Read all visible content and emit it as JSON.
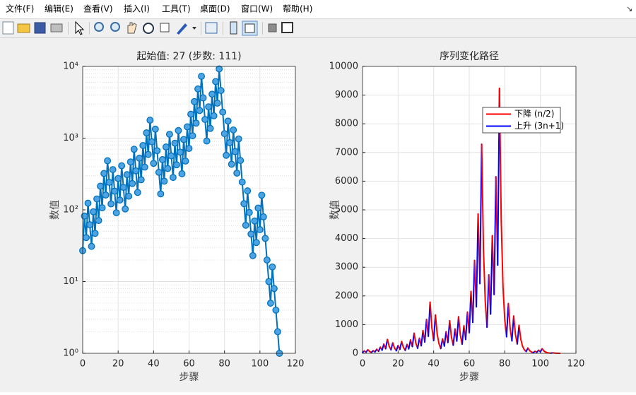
{
  "menu": [
    "文件(F)",
    "编辑(E)",
    "查看(V)",
    "插入(I)",
    "工具(T)",
    "桌面(D)",
    "窗口(W)",
    "帮助(H)"
  ],
  "chart_data": [
    {
      "type": "line",
      "title": "起始值: 27 (步数: 111)",
      "xlabel": "步骤",
      "ylabel": "数值",
      "log_y": true,
      "grid": true,
      "color": "#0072bd",
      "marker_color": "#4ea3e3",
      "xlim": [
        0,
        120
      ],
      "xticks": [
        0,
        20,
        40,
        60,
        80,
        100,
        120
      ],
      "ylim": [
        1,
        10000
      ],
      "yticks": [
        {
          "value": 1,
          "label": "10⁰"
        },
        {
          "value": 10,
          "label": "10¹"
        },
        {
          "value": 100,
          "label": "10²"
        },
        {
          "value": 1000,
          "label": "10³"
        },
        {
          "value": 10000,
          "label": "10⁴"
        }
      ],
      "yminorticks": [
        2,
        3,
        4,
        5,
        6,
        7,
        8,
        9,
        20,
        30,
        40,
        50,
        60,
        70,
        80,
        90,
        200,
        300,
        400,
        500,
        600,
        700,
        800,
        900,
        2000,
        3000,
        4000,
        5000,
        6000,
        7000,
        8000,
        9000
      ],
      "x": [
        0,
        1,
        2,
        3,
        4,
        5,
        6,
        7,
        8,
        9,
        10,
        11,
        12,
        13,
        14,
        15,
        16,
        17,
        18,
        19,
        20,
        21,
        22,
        23,
        24,
        25,
        26,
        27,
        28,
        29,
        30,
        31,
        32,
        33,
        34,
        35,
        36,
        37,
        38,
        39,
        40,
        41,
        42,
        43,
        44,
        45,
        46,
        47,
        48,
        49,
        50,
        51,
        52,
        53,
        54,
        55,
        56,
        57,
        58,
        59,
        60,
        61,
        62,
        63,
        64,
        65,
        66,
        67,
        68,
        69,
        70,
        71,
        72,
        73,
        74,
        75,
        76,
        77,
        78,
        79,
        80,
        81,
        82,
        83,
        84,
        85,
        86,
        87,
        88,
        89,
        90,
        91,
        92,
        93,
        94,
        95,
        96,
        97,
        98,
        99,
        100,
        101,
        102,
        103,
        104,
        105,
        106,
        107,
        108,
        109,
        110,
        111
      ],
      "values": [
        27,
        82,
        41,
        124,
        62,
        31,
        94,
        47,
        142,
        71,
        214,
        107,
        322,
        161,
        484,
        242,
        121,
        364,
        182,
        91,
        274,
        137,
        412,
        206,
        103,
        310,
        155,
        466,
        233,
        700,
        350,
        175,
        526,
        263,
        790,
        395,
        1186,
        593,
        1780,
        890,
        445,
        1336,
        668,
        334,
        167,
        502,
        251,
        754,
        377,
        1132,
        566,
        283,
        850,
        425,
        1276,
        638,
        319,
        958,
        479,
        1438,
        719,
        2158,
        1079,
        3238,
        1619,
        4858,
        2429,
        7288,
        3644,
        1822,
        911,
        2734,
        1367,
        4102,
        2051,
        6154,
        3077,
        9232,
        4616,
        2308,
        1154,
        577,
        1732,
        866,
        433,
        1300,
        650,
        325,
        976,
        488,
        244,
        122,
        61,
        184,
        92,
        46,
        23,
        70,
        35,
        106,
        53,
        160,
        80,
        40,
        20,
        10,
        5,
        16,
        8,
        4,
        2,
        1
      ]
    },
    {
      "type": "direction-line",
      "title": "序列变化路径",
      "xlabel": "步骤",
      "ylabel": "数值",
      "grid": true,
      "legend": "northeast",
      "legend_entries": [
        {
          "name": "下降 (n/2)",
          "color": "#ff0000"
        },
        {
          "name": "上升 (3n+1)",
          "color": "#0000ff"
        }
      ],
      "xlim": [
        0,
        120
      ],
      "xticks": [
        0,
        20,
        40,
        60,
        80,
        100,
        120
      ],
      "ylim": [
        0,
        10000
      ],
      "yticks": [
        0,
        1000,
        2000,
        3000,
        4000,
        5000,
        6000,
        7000,
        8000,
        9000,
        10000
      ],
      "x": [
        0,
        1,
        2,
        3,
        4,
        5,
        6,
        7,
        8,
        9,
        10,
        11,
        12,
        13,
        14,
        15,
        16,
        17,
        18,
        19,
        20,
        21,
        22,
        23,
        24,
        25,
        26,
        27,
        28,
        29,
        30,
        31,
        32,
        33,
        34,
        35,
        36,
        37,
        38,
        39,
        40,
        41,
        42,
        43,
        44,
        45,
        46,
        47,
        48,
        49,
        50,
        51,
        52,
        53,
        54,
        55,
        56,
        57,
        58,
        59,
        60,
        61,
        62,
        63,
        64,
        65,
        66,
        67,
        68,
        69,
        70,
        71,
        72,
        73,
        74,
        75,
        76,
        77,
        78,
        79,
        80,
        81,
        82,
        83,
        84,
        85,
        86,
        87,
        88,
        89,
        90,
        91,
        92,
        93,
        94,
        95,
        96,
        97,
        98,
        99,
        100,
        101,
        102,
        103,
        104,
        105,
        106,
        107,
        108,
        109,
        110,
        111
      ],
      "values": [
        27,
        82,
        41,
        124,
        62,
        31,
        94,
        47,
        142,
        71,
        214,
        107,
        322,
        161,
        484,
        242,
        121,
        364,
        182,
        91,
        274,
        137,
        412,
        206,
        103,
        310,
        155,
        466,
        233,
        700,
        350,
        175,
        526,
        263,
        790,
        395,
        1186,
        593,
        1780,
        890,
        445,
        1336,
        668,
        334,
        167,
        502,
        251,
        754,
        377,
        1132,
        566,
        283,
        850,
        425,
        1276,
        638,
        319,
        958,
        479,
        1438,
        719,
        2158,
        1079,
        3238,
        1619,
        4858,
        2429,
        7288,
        3644,
        1822,
        911,
        2734,
        1367,
        4102,
        2051,
        6154,
        3077,
        9232,
        4616,
        2308,
        1154,
        577,
        1732,
        866,
        433,
        1300,
        650,
        325,
        976,
        488,
        244,
        122,
        61,
        184,
        92,
        46,
        23,
        70,
        35,
        106,
        53,
        160,
        80,
        40,
        20,
        10,
        5,
        16,
        8,
        4,
        2,
        1
      ]
    }
  ]
}
